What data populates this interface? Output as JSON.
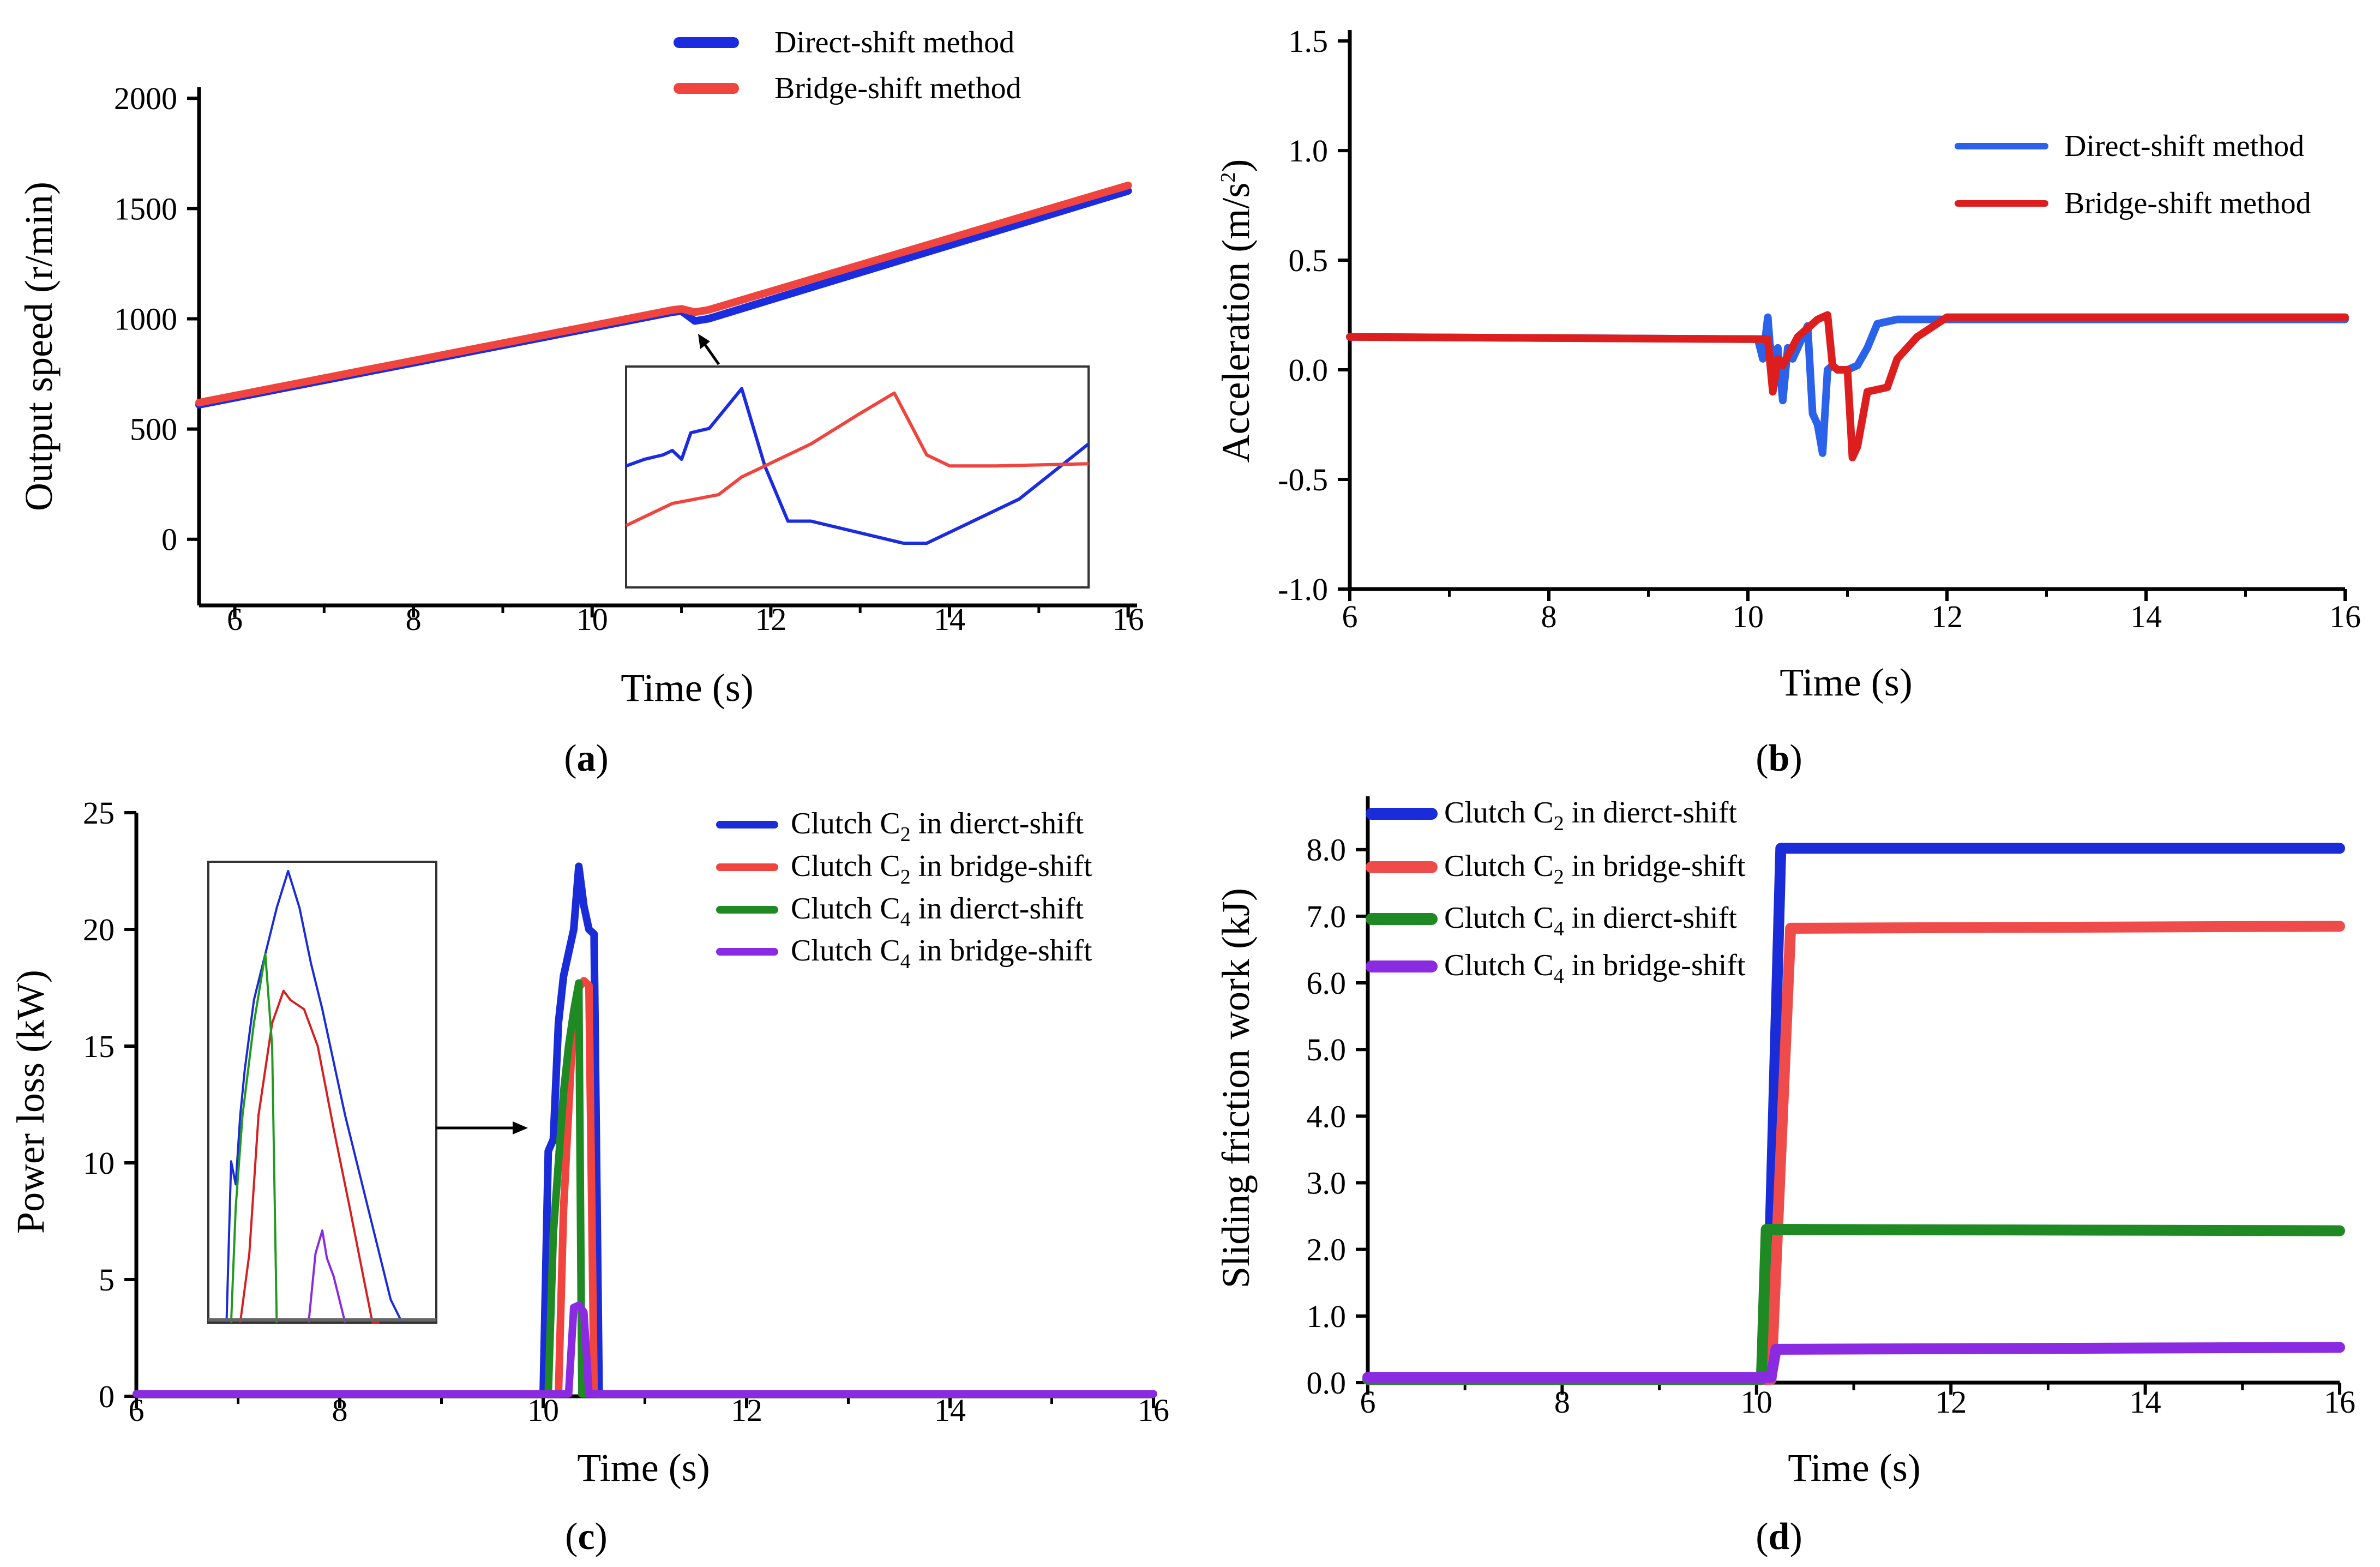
{
  "figure": {
    "panels": [
      {
        "label_open": "(",
        "label_letter": "a",
        "label_close": ")"
      },
      {
        "label_open": "(",
        "label_letter": "b",
        "label_close": ")"
      },
      {
        "label_open": "(",
        "label_letter": "c",
        "label_close": ")"
      },
      {
        "label_open": "(",
        "label_letter": "d",
        "label_close": ")"
      }
    ]
  },
  "chart_data": [
    {
      "type": "line",
      "xlabel": "Time (s)",
      "ylabel": "Output speed (r/min)",
      "xlim": [
        5.6,
        16.1
      ],
      "ylim": [
        -300,
        2050
      ],
      "xticks": [
        6,
        8,
        10,
        12,
        14,
        16
      ],
      "yticks": [
        0,
        500,
        1000,
        1500,
        2000
      ],
      "legend_position": "top-right",
      "series": [
        {
          "name": "Direct-shift method",
          "color": "#1a2be0",
          "x": [
            5.6,
            10.9,
            11.0,
            11.05,
            11.1,
            11.15,
            11.3,
            16.0
          ],
          "y": [
            610,
            1030,
            1035,
            1020,
            1005,
            990,
            1000,
            1580
          ]
        },
        {
          "name": "Bridge-shift method",
          "color": "#f0443e",
          "x": [
            5.6,
            10.9,
            11.0,
            11.1,
            11.15,
            11.3,
            16.0
          ],
          "y": [
            620,
            1040,
            1045,
            1035,
            1030,
            1040,
            1605
          ]
        }
      ],
      "inset": {
        "series": [
          {
            "color": "#1a2be0",
            "x": [
              0,
              0.04,
              0.08,
              0.1,
              0.12,
              0.14,
              0.18,
              0.25,
              0.3,
              0.35,
              0.4,
              0.6,
              0.65,
              0.75,
              0.85,
              1.0
            ],
            "y": [
              0.55,
              0.58,
              0.6,
              0.62,
              0.58,
              0.7,
              0.72,
              0.9,
              0.55,
              0.3,
              0.3,
              0.2,
              0.2,
              0.3,
              0.4,
              0.65
            ]
          },
          {
            "color": "#f0443e",
            "x": [
              0,
              0.1,
              0.2,
              0.25,
              0.3,
              0.4,
              0.5,
              0.58,
              0.65,
              0.7,
              0.8,
              1.0
            ],
            "y": [
              0.28,
              0.38,
              0.42,
              0.5,
              0.55,
              0.65,
              0.78,
              0.88,
              0.6,
              0.55,
              0.55,
              0.56
            ]
          }
        ]
      }
    },
    {
      "type": "line",
      "xlabel": "Time (s)",
      "ylabel_main": "Acceleration (m/s",
      "ylabel_sup": "2",
      "ylabel_end": ")",
      "xlim": [
        6,
        16
      ],
      "ylim": [
        -1.0,
        1.55
      ],
      "xticks": [
        6,
        8,
        10,
        12,
        14,
        16
      ],
      "yticks": [
        -1.0,
        -0.5,
        0.0,
        0.5,
        1.0,
        1.5
      ],
      "ytick_labels": [
        "-1.0",
        "-0.5",
        "0.0",
        "0.5",
        "1.0",
        "1.5"
      ],
      "legend_position": "top-right",
      "series": [
        {
          "name": "Direct-shift method",
          "color": "#2a62ea",
          "x": [
            6,
            10.1,
            10.15,
            10.2,
            10.22,
            10.25,
            10.3,
            10.35,
            10.4,
            10.45,
            10.6,
            10.65,
            10.7,
            10.75,
            10.8,
            10.85,
            10.9,
            11.0,
            11.1,
            11.2,
            11.3,
            11.5,
            12,
            16
          ],
          "y": [
            0.15,
            0.14,
            0.05,
            0.24,
            0.12,
            0.05,
            0.1,
            -0.14,
            0.1,
            0.05,
            0.2,
            -0.2,
            -0.25,
            -0.38,
            0.0,
            0.02,
            0.0,
            0.0,
            0.02,
            0.1,
            0.21,
            0.23,
            0.23,
            0.23
          ]
        },
        {
          "name": "Bridge-shift method",
          "color": "#dc1e1e",
          "x": [
            6,
            10.0,
            10.2,
            10.25,
            10.3,
            10.35,
            10.5,
            10.7,
            10.8,
            10.85,
            10.9,
            11.0,
            11.05,
            11.1,
            11.2,
            11.4,
            11.5,
            11.7,
            12,
            16
          ],
          "y": [
            0.15,
            0.14,
            0.14,
            -0.1,
            0.05,
            0.02,
            0.15,
            0.23,
            0.25,
            0.02,
            0.0,
            0.0,
            -0.4,
            -0.35,
            -0.1,
            -0.08,
            0.05,
            0.15,
            0.24,
            0.24
          ]
        }
      ]
    },
    {
      "type": "line",
      "xlabel": "Time (s)",
      "ylabel": "Power loss (kW)",
      "xlim": [
        6,
        16
      ],
      "ylim": [
        0,
        25
      ],
      "xticks": [
        6,
        8,
        10,
        12,
        14,
        16
      ],
      "yticks": [
        0,
        5,
        10,
        15,
        20,
        25
      ],
      "legend_position": "top-right",
      "series": [
        {
          "name_main": "Clutch C",
          "name_sub": "2",
          "name_rest": " in dierct-shift",
          "color": "#1a2bd8",
          "x": [
            6,
            10.0,
            10.05,
            10.1,
            10.15,
            10.2,
            10.3,
            10.35,
            10.4,
            10.45,
            10.5,
            10.55,
            10.6,
            10.65,
            16
          ],
          "y": [
            0.1,
            0.1,
            10.5,
            11,
            16,
            18,
            20,
            22.7,
            21,
            20,
            19.8,
            0.1,
            0.1,
            0.1,
            0.1
          ]
        },
        {
          "name_main": "Clutch C",
          "name_sub": "2",
          "name_rest": " in bridge-shift",
          "color": "#f0443e",
          "x": [
            6,
            10.15,
            10.2,
            10.3,
            10.35,
            10.4,
            10.45,
            10.5,
            10.55,
            16
          ],
          "y": [
            0.1,
            0.1,
            8,
            16.5,
            17.5,
            17.8,
            17.6,
            0.1,
            0.1,
            0.1
          ]
        },
        {
          "name_main": "Clutch C",
          "name_sub": "4",
          "name_rest": " in dierct-shift",
          "color": "#1f8a24",
          "x": [
            6,
            10.05,
            10.1,
            10.2,
            10.25,
            10.3,
            10.35,
            10.38,
            10.4,
            16
          ],
          "y": [
            0.1,
            0.1,
            7,
            13,
            15,
            16.5,
            17.7,
            0.1,
            0.1,
            0.1
          ]
        },
        {
          "name_main": "Clutch C",
          "name_sub": "4",
          "name_rest": " in bridge-shift",
          "color": "#8a2be2",
          "x": [
            6,
            10.25,
            10.3,
            10.35,
            10.4,
            10.45,
            10.5,
            16
          ],
          "y": [
            0.1,
            0.1,
            3.8,
            3.9,
            3.6,
            0.1,
            0.1,
            0.1
          ]
        }
      ],
      "inset": {
        "series": [
          {
            "color": "#1a2bd8",
            "x": [
              0.08,
              0.1,
              0.12,
              0.14,
              0.16,
              0.2,
              0.3,
              0.35,
              0.4,
              0.45,
              0.5,
              0.6,
              0.7,
              0.8,
              0.85
            ],
            "y": [
              0.0,
              0.35,
              0.3,
              0.45,
              0.55,
              0.7,
              0.9,
              0.98,
              0.9,
              0.78,
              0.68,
              0.45,
              0.25,
              0.05,
              0.0
            ]
          },
          {
            "color": "#d42020",
            "x": [
              0.14,
              0.18,
              0.22,
              0.28,
              0.33,
              0.36,
              0.42,
              0.48,
              0.55,
              0.62,
              0.68,
              0.72,
              0.75
            ],
            "y": [
              0.0,
              0.15,
              0.45,
              0.65,
              0.72,
              0.7,
              0.68,
              0.6,
              0.42,
              0.25,
              0.1,
              0.0,
              0.0
            ]
          },
          {
            "color": "#229a22",
            "x": [
              0.1,
              0.12,
              0.15,
              0.2,
              0.25,
              0.28,
              0.3
            ],
            "y": [
              0.0,
              0.25,
              0.45,
              0.65,
              0.8,
              0.6,
              0.0
            ]
          },
          {
            "color": "#8a2be2",
            "x": [
              0.44,
              0.47,
              0.5,
              0.52,
              0.55,
              0.6
            ],
            "y": [
              0.0,
              0.15,
              0.2,
              0.14,
              0.1,
              0.0
            ]
          }
        ]
      }
    },
    {
      "type": "line",
      "xlabel": "Time (s)",
      "ylabel": "Sliding friction work (kJ)",
      "xlim": [
        6,
        16
      ],
      "ylim": [
        0,
        8.8
      ],
      "xticks": [
        6,
        8,
        10,
        12,
        14,
        16
      ],
      "yticks": [
        0,
        1,
        2,
        3,
        4,
        5,
        6,
        7,
        8
      ],
      "ytick_labels": [
        "0.0",
        "1.0",
        "2.0",
        "3.0",
        "4.0",
        "5.0",
        "6.0",
        "7.0",
        "8.0"
      ],
      "legend_position": "top-left",
      "series": [
        {
          "name_main": "Clutch C",
          "name_sub": "2",
          "name_rest": " in  dierct-shift",
          "color": "#1a2bd8",
          "x": [
            6,
            10.1,
            10.25,
            16
          ],
          "y": [
            0.05,
            0.05,
            8.02,
            8.02
          ]
        },
        {
          "name_main": "Clutch C",
          "name_sub": "2",
          "name_rest": " in bridge-shift",
          "color": "#ef4b4b",
          "x": [
            6,
            10.15,
            10.35,
            16
          ],
          "y": [
            0.05,
            0.05,
            6.82,
            6.85
          ]
        },
        {
          "name_main": "Clutch C",
          "name_sub": "4",
          "name_rest": " in dierct-shift",
          "color": "#1f8a24",
          "x": [
            6,
            10.05,
            10.1,
            16
          ],
          "y": [
            0.05,
            0.05,
            2.3,
            2.28
          ]
        },
        {
          "name_main": "Clutch C",
          "name_sub": "4",
          "name_rest": " in bridge-shift",
          "color": "#8a2be2",
          "x": [
            6,
            10.15,
            10.2,
            16
          ],
          "y": [
            0.08,
            0.08,
            0.5,
            0.53
          ]
        }
      ]
    }
  ]
}
